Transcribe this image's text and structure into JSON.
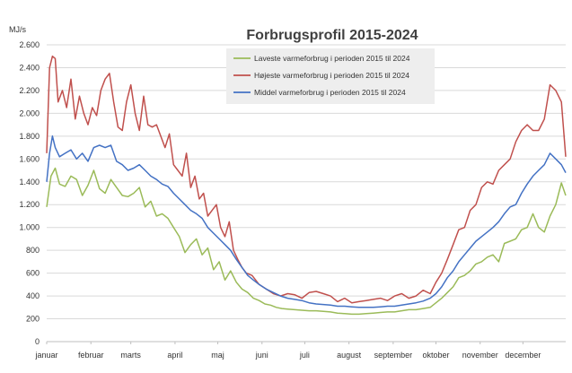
{
  "chart_data": {
    "type": "line",
    "title": "Forbrugsprofil 2015-2024",
    "ylabel": "MJ/s",
    "xlabel": "",
    "ylim": [
      0,
      2600
    ],
    "yticks": [
      0,
      200,
      400,
      600,
      800,
      1000,
      1200,
      1400,
      1600,
      1800,
      2000,
      2200,
      2400,
      2600
    ],
    "ytick_labels": [
      "0",
      "200",
      "400",
      "600",
      "800",
      "1.000",
      "1.200",
      "1.400",
      "1.600",
      "1.800",
      "2.000",
      "2.200",
      "2.400",
      "2.600"
    ],
    "xlim": [
      1,
      365
    ],
    "xticks": [
      1,
      32,
      60,
      91,
      121,
      152,
      182,
      213,
      244,
      274,
      305,
      335
    ],
    "xtick_labels": [
      "januar",
      "februar",
      "marts",
      "april",
      "maj",
      "juni",
      "juli",
      "august",
      "september",
      "oktober",
      "november",
      "december"
    ],
    "grid": "horizontal",
    "legend_position": "top-center",
    "series": [
      {
        "name": "Laveste varmeforbrug i perioden 2015 til 2024",
        "color": "#9bbb59",
        "x": [
          1,
          4,
          7,
          10,
          14,
          18,
          22,
          26,
          30,
          34,
          38,
          42,
          46,
          50,
          54,
          58,
          62,
          66,
          70,
          74,
          78,
          82,
          86,
          90,
          94,
          98,
          102,
          106,
          110,
          114,
          118,
          122,
          126,
          130,
          134,
          138,
          142,
          146,
          150,
          154,
          158,
          162,
          166,
          170,
          175,
          180,
          185,
          190,
          195,
          200,
          205,
          210,
          215,
          220,
          225,
          230,
          235,
          240,
          245,
          250,
          255,
          260,
          265,
          270,
          274,
          278,
          282,
          286,
          290,
          294,
          298,
          302,
          306,
          310,
          314,
          318,
          322,
          326,
          330,
          334,
          338,
          342,
          346,
          350,
          354,
          358,
          362,
          365
        ],
        "values": [
          1180,
          1450,
          1520,
          1380,
          1360,
          1450,
          1420,
          1280,
          1370,
          1500,
          1340,
          1300,
          1420,
          1350,
          1280,
          1270,
          1300,
          1350,
          1180,
          1230,
          1100,
          1120,
          1080,
          1000,
          920,
          780,
          850,
          900,
          760,
          820,
          630,
          700,
          540,
          620,
          520,
          460,
          430,
          380,
          360,
          330,
          320,
          300,
          290,
          285,
          280,
          275,
          270,
          270,
          265,
          260,
          250,
          245,
          240,
          240,
          245,
          250,
          255,
          260,
          260,
          270,
          280,
          280,
          290,
          300,
          340,
          380,
          430,
          480,
          560,
          580,
          620,
          680,
          700,
          740,
          760,
          700,
          860,
          880,
          900,
          980,
          1000,
          1120,
          1000,
          960,
          1100,
          1200,
          1390,
          1280
        ]
      },
      {
        "name": "Højeste  varmeforbrug i perioden 2015 til 2024",
        "color": "#c0504d",
        "x": [
          1,
          3,
          5,
          7,
          9,
          12,
          15,
          18,
          21,
          24,
          27,
          30,
          33,
          36,
          39,
          42,
          45,
          48,
          51,
          54,
          57,
          60,
          63,
          66,
          69,
          72,
          75,
          78,
          81,
          84,
          87,
          90,
          93,
          96,
          99,
          102,
          105,
          108,
          111,
          114,
          117,
          120,
          123,
          126,
          129,
          132,
          135,
          138,
          141,
          145,
          150,
          155,
          160,
          165,
          170,
          175,
          180,
          185,
          190,
          195,
          200,
          205,
          210,
          215,
          220,
          225,
          230,
          235,
          240,
          245,
          250,
          255,
          260,
          265,
          270,
          274,
          278,
          282,
          286,
          290,
          294,
          298,
          302,
          306,
          310,
          314,
          318,
          322,
          326,
          330,
          334,
          338,
          342,
          346,
          350,
          354,
          358,
          362,
          365
        ],
        "values": [
          1650,
          2400,
          2500,
          2480,
          2100,
          2200,
          2050,
          2300,
          1950,
          2150,
          2000,
          1900,
          2050,
          1980,
          2200,
          2300,
          2350,
          2100,
          1880,
          1850,
          2100,
          2250,
          2000,
          1850,
          2150,
          1900,
          1880,
          1900,
          1800,
          1700,
          1820,
          1550,
          1500,
          1450,
          1650,
          1350,
          1450,
          1250,
          1300,
          1100,
          1150,
          1200,
          1000,
          920,
          1050,
          800,
          720,
          650,
          600,
          580,
          500,
          460,
          420,
          400,
          420,
          410,
          380,
          430,
          440,
          420,
          400,
          350,
          380,
          340,
          350,
          360,
          370,
          380,
          360,
          400,
          420,
          380,
          400,
          450,
          420,
          520,
          600,
          720,
          850,
          980,
          1000,
          1150,
          1200,
          1350,
          1400,
          1380,
          1500,
          1550,
          1600,
          1750,
          1850,
          1900,
          1850,
          1850,
          1950,
          2250,
          2200,
          2100,
          1620
        ]
      },
      {
        "name": "Middel varmeforbrug i perioden 2015 til 2024",
        "color": "#4472c4",
        "x": [
          1,
          3,
          5,
          7,
          10,
          14,
          18,
          22,
          26,
          30,
          34,
          38,
          42,
          46,
          50,
          54,
          58,
          62,
          66,
          70,
          74,
          78,
          82,
          86,
          90,
          94,
          98,
          102,
          106,
          110,
          114,
          118,
          122,
          126,
          130,
          134,
          138,
          142,
          146,
          150,
          155,
          160,
          165,
          170,
          175,
          180,
          185,
          190,
          195,
          200,
          205,
          210,
          215,
          220,
          225,
          230,
          235,
          240,
          245,
          250,
          255,
          260,
          265,
          270,
          274,
          278,
          282,
          286,
          290,
          294,
          298,
          302,
          306,
          310,
          314,
          318,
          322,
          326,
          330,
          334,
          338,
          342,
          346,
          350,
          354,
          358,
          362,
          365
        ],
        "values": [
          1400,
          1650,
          1800,
          1700,
          1620,
          1650,
          1680,
          1600,
          1650,
          1580,
          1700,
          1720,
          1700,
          1720,
          1580,
          1550,
          1500,
          1520,
          1550,
          1500,
          1450,
          1420,
          1380,
          1360,
          1300,
          1250,
          1200,
          1150,
          1120,
          1080,
          1000,
          950,
          900,
          850,
          800,
          720,
          650,
          580,
          540,
          500,
          460,
          430,
          400,
          380,
          370,
          360,
          340,
          330,
          325,
          320,
          310,
          310,
          305,
          300,
          300,
          300,
          305,
          310,
          310,
          320,
          330,
          340,
          355,
          380,
          420,
          480,
          560,
          620,
          700,
          760,
          820,
          880,
          920,
          960,
          1000,
          1050,
          1120,
          1180,
          1200,
          1300,
          1380,
          1450,
          1500,
          1550,
          1650,
          1600,
          1550,
          1480
        ]
      }
    ]
  }
}
